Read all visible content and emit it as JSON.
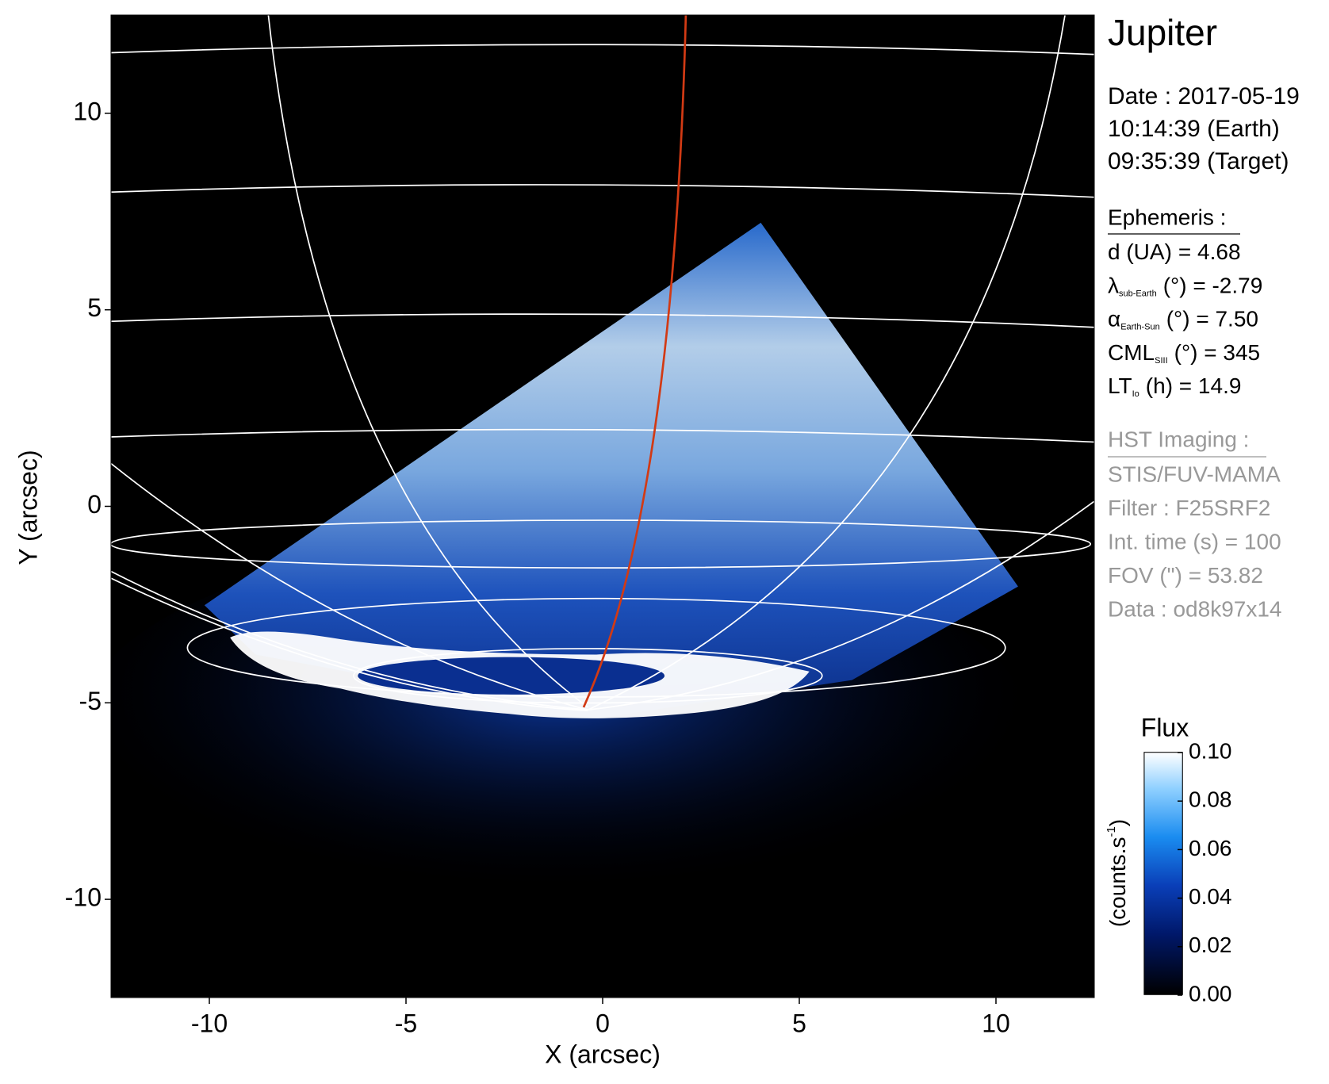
{
  "chart_data": {
    "type": "image",
    "title": "Jupiter",
    "xlabel": "X (arcsec)",
    "ylabel": "Y (arcsec)",
    "xlim": [
      -12.5,
      12.5
    ],
    "ylim": [
      -12.5,
      12.5
    ],
    "xticks": [
      -10,
      -5,
      0,
      5,
      10
    ],
    "yticks": [
      -10,
      -5,
      0,
      5,
      10
    ],
    "info": {
      "date_lines": [
        "Date : 2017-05-19",
        "10:14:39 (Earth)",
        "09:35:39 (Target)"
      ],
      "ephemeris_heading": "Ephemeris :",
      "ephemeris": [
        {
          "symbol": "d (UA)",
          "rest": "= 4.68"
        },
        {
          "symbol": "λ",
          "subscript": "sub-Earth",
          "rest": "(°) = -2.79"
        },
        {
          "symbol": "α",
          "subscript": "Earth-Sun",
          "rest": "(°) = 7.50"
        },
        {
          "symbol": "CML",
          "subscript": "SIII",
          "rest": "(°) = 345"
        },
        {
          "symbol": "LT",
          "subscript": "Io",
          "rest": "(h) = 14.9"
        }
      ],
      "imaging_heading": "HST Imaging :",
      "imaging": [
        "STIS/FUV-MAMA",
        "Filter : F25SRF2",
        "Int. time (s) = 100",
        "FOV (\") = 53.82",
        "Data : od8k97x14"
      ]
    },
    "colorbar": {
      "title": "Flux",
      "label": "(counts.s",
      "label_superscript": "-1",
      "label_close": ")",
      "lim": [
        0,
        0.1
      ],
      "ticks": [
        {
          "value": 0,
          "label": "0.00"
        },
        {
          "value": 0.02,
          "label": "0.02"
        },
        {
          "value": 0.04,
          "label": "0.04"
        },
        {
          "value": 0.06,
          "label": "0.06"
        },
        {
          "value": 0.08,
          "label": "0.08"
        },
        {
          "value": 0.1,
          "label": "0.10"
        }
      ]
    }
  }
}
